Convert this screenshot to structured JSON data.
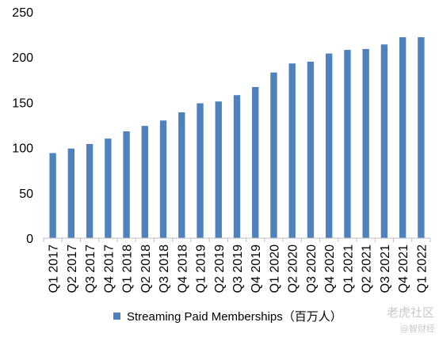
{
  "chart_data": {
    "type": "bar",
    "categories": [
      "Q1 2017",
      "Q2 2017",
      "Q3 2017",
      "Q4 2017",
      "Q1 2018",
      "Q2 2018",
      "Q3 2018",
      "Q4 2018",
      "Q1 2019",
      "Q2 2019",
      "Q3 2019",
      "Q4 2019",
      "Q1 2020",
      "Q2 2020",
      "Q3 2020",
      "Q4 2020",
      "Q1 2021",
      "Q2 2021",
      "Q3 2021",
      "Q4 2021",
      "Q1 2022"
    ],
    "series": [
      {
        "name": "Streaming Paid Memberships（百万人）",
        "values": [
          94,
          99,
          104,
          110,
          118,
          124,
          130,
          139,
          149,
          151,
          158,
          167,
          183,
          193,
          195,
          204,
          208,
          209,
          214,
          222,
          222
        ],
        "color": "#4f81bd"
      }
    ],
    "ylim": [
      0,
      250
    ],
    "yticks": [
      0,
      50,
      100,
      150,
      200,
      250
    ],
    "grid": false,
    "legend_position": "bottom"
  },
  "watermark": {
    "text_main": "老虎社区",
    "text_sub": "@智财经"
  }
}
